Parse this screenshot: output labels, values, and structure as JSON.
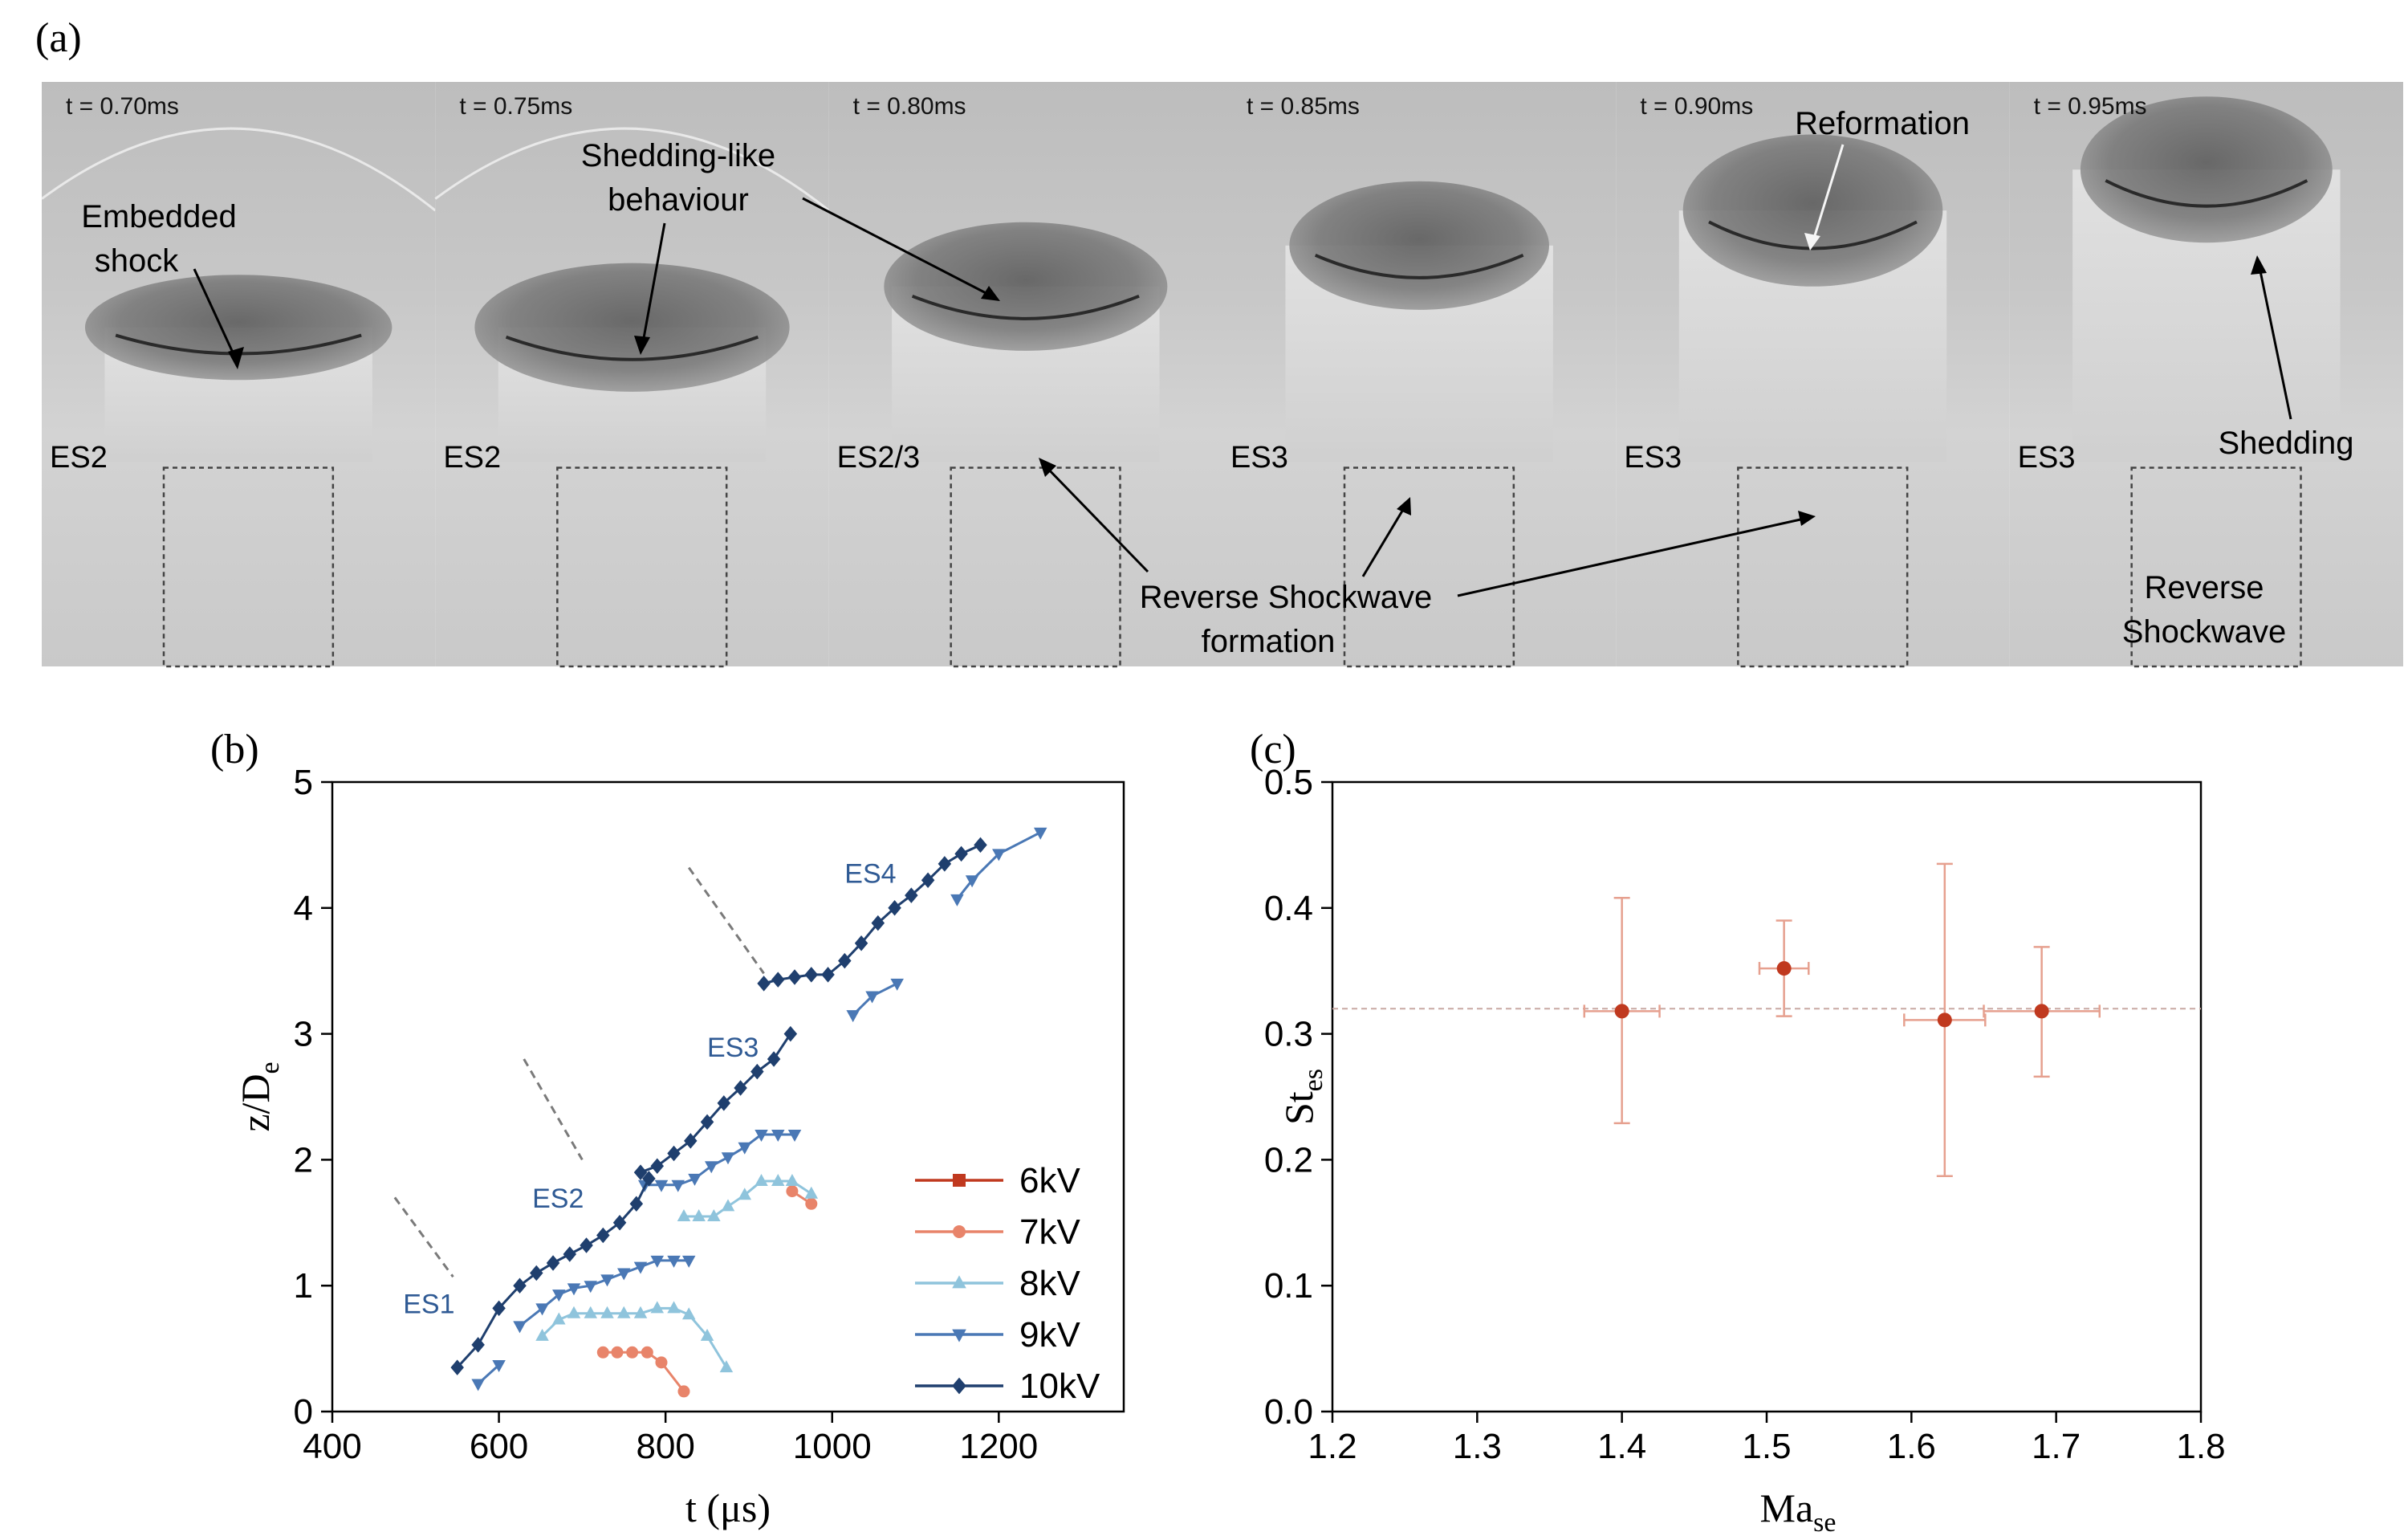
{
  "panel_a": {
    "label": "(a)",
    "frames": [
      {
        "time": "t = 0.70ms",
        "regime": "ES2"
      },
      {
        "time": "t = 0.75ms",
        "regime": "ES2"
      },
      {
        "time": "t = 0.80ms",
        "regime": "ES2/3"
      },
      {
        "time": "t = 0.85ms",
        "regime": "ES3"
      },
      {
        "time": "t = 0.90ms",
        "regime": "ES3"
      },
      {
        "time": "t = 0.95ms",
        "regime": "ES3"
      }
    ],
    "annotations": {
      "embedded_shock": [
        "Embedded",
        "shock"
      ],
      "shedding_like": [
        "Shedding-like",
        "behaviour"
      ],
      "reformation": "Reformation",
      "shedding": "Shedding",
      "reverse_formation": [
        "Reverse Shockwave",
        "formation"
      ],
      "reverse_shockwave": [
        "Reverse",
        "Shockwave"
      ]
    }
  },
  "chart_data": [
    {
      "panel": "(b)",
      "type": "line",
      "xlabel": "t (μs)",
      "ylabel": "z/D",
      "ylabel_sub": "e",
      "xlim": [
        400,
        1350
      ],
      "ylim": [
        0,
        5
      ],
      "xticks": [
        400,
        600,
        800,
        1000,
        1200
      ],
      "yticks": [
        0,
        1,
        2,
        3,
        4,
        5
      ],
      "legend": "bottom-right",
      "regime_labels": [
        {
          "text": "ES1",
          "x": 485,
          "y": 0.78
        },
        {
          "text": "ES2",
          "x": 640,
          "y": 1.62
        },
        {
          "text": "ES3",
          "x": 850,
          "y": 2.82
        },
        {
          "text": "ES4",
          "x": 1015,
          "y": 4.2
        }
      ],
      "guide_lines": [
        [
          [
            475,
            1.7
          ],
          [
            545,
            1.07
          ]
        ],
        [
          [
            630,
            2.8
          ],
          [
            700,
            2.0
          ]
        ],
        [
          [
            828,
            4.32
          ],
          [
            918,
            3.48
          ]
        ]
      ],
      "series": [
        {
          "name": "6kV",
          "color": "#c0391f",
          "marker": "square",
          "segments": []
        },
        {
          "name": "7kV",
          "color": "#e8846a",
          "marker": "circle",
          "segments": [
            [
              [
                725,
                0.47
              ],
              [
                742,
                0.47
              ],
              [
                760,
                0.47
              ],
              [
                778,
                0.47
              ],
              [
                795,
                0.39
              ],
              [
                822,
                0.16
              ]
            ],
            [
              [
                952,
                1.75
              ],
              [
                975,
                1.65
              ]
            ]
          ]
        },
        {
          "name": "8kV",
          "color": "#8fc4dc",
          "marker": "triangle-up",
          "segments": [
            [
              [
                652,
                0.6
              ],
              [
                672,
                0.73
              ],
              [
                690,
                0.78
              ],
              [
                710,
                0.78
              ],
              [
                730,
                0.78
              ],
              [
                750,
                0.78
              ],
              [
                770,
                0.78
              ],
              [
                790,
                0.82
              ],
              [
                810,
                0.82
              ],
              [
                828,
                0.77
              ],
              [
                850,
                0.6
              ],
              [
                873,
                0.35
              ]
            ],
            [
              [
                822,
                1.55
              ],
              [
                840,
                1.55
              ],
              [
                858,
                1.55
              ],
              [
                875,
                1.63
              ],
              [
                895,
                1.72
              ],
              [
                915,
                1.83
              ],
              [
                935,
                1.83
              ],
              [
                952,
                1.83
              ],
              [
                975,
                1.73
              ]
            ]
          ]
        },
        {
          "name": "9kV",
          "color": "#4a78b5",
          "marker": "triangle-down",
          "segments": [
            [
              [
                575,
                0.22
              ],
              [
                600,
                0.37
              ]
            ],
            [
              [
                625,
                0.68
              ],
              [
                652,
                0.82
              ],
              [
                672,
                0.93
              ],
              [
                690,
                0.98
              ],
              [
                710,
                1.0
              ],
              [
                730,
                1.05
              ],
              [
                750,
                1.1
              ],
              [
                770,
                1.15
              ],
              [
                790,
                1.2
              ],
              [
                810,
                1.2
              ],
              [
                828,
                1.2
              ]
            ],
            [
              [
                775,
                1.8
              ],
              [
                795,
                1.8
              ],
              [
                815,
                1.8
              ],
              [
                835,
                1.85
              ],
              [
                855,
                1.95
              ],
              [
                875,
                2.02
              ],
              [
                895,
                2.1
              ],
              [
                915,
                2.2
              ],
              [
                935,
                2.2
              ],
              [
                955,
                2.2
              ]
            ],
            [
              [
                1025,
                3.15
              ],
              [
                1048,
                3.3
              ],
              [
                1078,
                3.4
              ]
            ],
            [
              [
                1150,
                4.07
              ],
              [
                1168,
                4.22
              ],
              [
                1200,
                4.43
              ],
              [
                1250,
                4.6
              ]
            ]
          ]
        },
        {
          "name": "10kV",
          "color": "#1f3f6e",
          "marker": "diamond",
          "segments": [
            [
              [
                550,
                0.35
              ],
              [
                575,
                0.53
              ],
              [
                600,
                0.82
              ],
              [
                625,
                1.0
              ],
              [
                645,
                1.1
              ],
              [
                665,
                1.18
              ],
              [
                685,
                1.25
              ],
              [
                705,
                1.32
              ],
              [
                725,
                1.4
              ],
              [
                745,
                1.5
              ],
              [
                765,
                1.65
              ],
              [
                780,
                1.85
              ]
            ],
            [
              [
                770,
                1.9
              ],
              [
                790,
                1.95
              ],
              [
                810,
                2.05
              ],
              [
                830,
                2.15
              ],
              [
                850,
                2.3
              ],
              [
                870,
                2.45
              ],
              [
                890,
                2.57
              ],
              [
                910,
                2.7
              ],
              [
                930,
                2.8
              ],
              [
                950,
                3.0
              ]
            ],
            [
              [
                918,
                3.4
              ],
              [
                935,
                3.43
              ],
              [
                955,
                3.45
              ],
              [
                975,
                3.47
              ],
              [
                995,
                3.47
              ],
              [
                1015,
                3.58
              ],
              [
                1035,
                3.72
              ],
              [
                1055,
                3.88
              ],
              [
                1075,
                4.0
              ],
              [
                1095,
                4.1
              ],
              [
                1115,
                4.22
              ],
              [
                1135,
                4.35
              ],
              [
                1155,
                4.43
              ],
              [
                1178,
                4.5
              ]
            ]
          ]
        }
      ]
    },
    {
      "panel": "(c)",
      "type": "scatter",
      "xlabel": "Ma",
      "xlabel_sub": "se",
      "ylabel": "St",
      "ylabel_sub": "es",
      "xlim": [
        1.2,
        1.8
      ],
      "ylim": [
        0.0,
        0.5
      ],
      "xticks": [
        1.2,
        1.3,
        1.4,
        1.5,
        1.6,
        1.7,
        1.8
      ],
      "yticks": [
        0.0,
        0.1,
        0.2,
        0.3,
        0.4,
        0.5
      ],
      "xtick_labels": [
        "1.2",
        "1.3",
        "1.4",
        "1.5",
        "1.6",
        "1.7",
        "1.8"
      ],
      "ytick_labels": [
        "0.0",
        "0.1",
        "0.2",
        "0.3",
        "0.4",
        "0.5"
      ],
      "reference_line_y": 0.32,
      "points": [
        {
          "x": 1.4,
          "y": 0.318,
          "xerr": 0.026,
          "yerr_low": 0.229,
          "yerr_high": 0.408
        },
        {
          "x": 1.512,
          "y": 0.352,
          "xerr": 0.017,
          "yerr_low": 0.314,
          "yerr_high": 0.39
        },
        {
          "x": 1.623,
          "y": 0.311,
          "xerr": 0.028,
          "yerr_low": 0.187,
          "yerr_high": 0.435
        },
        {
          "x": 1.69,
          "y": 0.318,
          "xerr": 0.04,
          "yerr_low": 0.266,
          "yerr_high": 0.369
        }
      ],
      "color": "#c0391f"
    }
  ]
}
